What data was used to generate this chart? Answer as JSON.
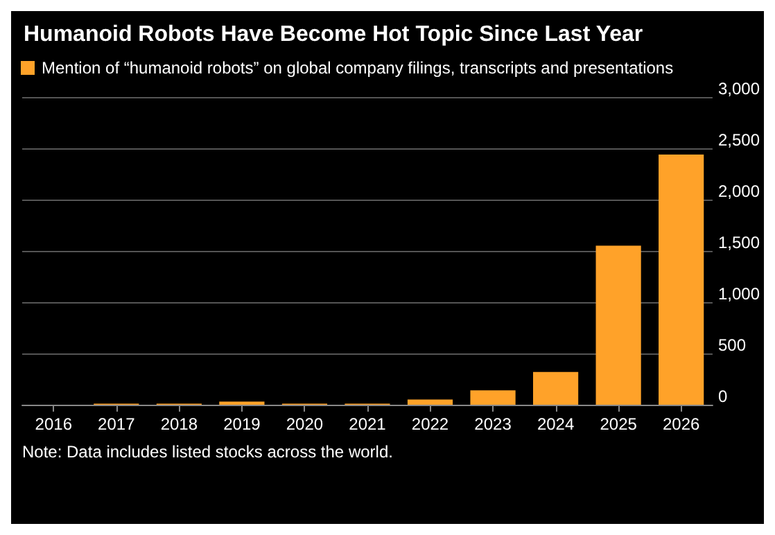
{
  "chart_data": {
    "type": "bar",
    "title": "Humanoid Robots Have Become Hot Topic Since Last Year",
    "categories": [
      "2016",
      "2017",
      "2018",
      "2019",
      "2020",
      "2021",
      "2022",
      "2023",
      "2024",
      "2025",
      "2026"
    ],
    "series": [
      {
        "name": "Mention of “humanoid robots” on global company filings, transcripts and presentations",
        "color": "#ffa229",
        "values": [
          0,
          10,
          10,
          30,
          10,
          10,
          50,
          140,
          320,
          1550,
          2440
        ]
      }
    ],
    "ylim": [
      0,
      3000
    ],
    "yticks": [
      0,
      500,
      {
        "value": 1000,
        "label": "1,000"
      },
      {
        "value": 1500,
        "label": "1,500"
      },
      {
        "value": 2000,
        "label": "2,000"
      },
      {
        "value": 2500,
        "label": "2,500"
      },
      {
        "value": 3000,
        "label": "3,000"
      }
    ],
    "grid": "y",
    "legend": "top left",
    "annotations": [
      "Note: Data includes listed stocks across the world."
    ]
  }
}
